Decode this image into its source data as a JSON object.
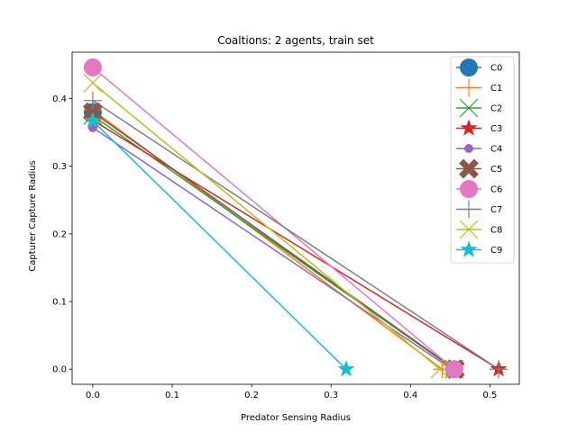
{
  "chart_data": {
    "type": "line",
    "title": "Coaltions: 2 agents, train set",
    "xlabel": "Predator Sensing Radius",
    "ylabel": "Capturer Capture Radius",
    "xlim": [
      -0.026,
      0.537
    ],
    "ylim": [
      -0.0223,
      0.4685
    ],
    "xticks": [
      0.0,
      0.1,
      0.2,
      0.3,
      0.4,
      0.5
    ],
    "xtick_labels": [
      "0.0",
      "0.1",
      "0.2",
      "0.3",
      "0.4",
      "0.5"
    ],
    "yticks": [
      0.0,
      0.1,
      0.2,
      0.3,
      0.4
    ],
    "ytick_labels": [
      "0.0",
      "0.1",
      "0.2",
      "0.3",
      "0.4"
    ],
    "grid": false,
    "legend_position": "upper right",
    "series": [
      {
        "name": "C0",
        "color": "#1f77b4",
        "marker": "circle-large",
        "x": [
          0.0,
          0.455
        ],
        "y": [
          0.38,
          0.0
        ]
      },
      {
        "name": "C1",
        "color": "#ff7f0e",
        "marker": "plus",
        "x": [
          0.0,
          0.44
        ],
        "y": [
          0.383,
          0.0
        ]
      },
      {
        "name": "C2",
        "color": "#2ca02c",
        "marker": "x",
        "x": [
          0.0,
          0.455
        ],
        "y": [
          0.375,
          0.0
        ]
      },
      {
        "name": "C3",
        "color": "#d62728",
        "marker": "star",
        "x": [
          0.0,
          0.511
        ],
        "y": [
          0.368,
          0.0
        ]
      },
      {
        "name": "C4",
        "color": "#9467bd",
        "marker": "circle-small",
        "x": [
          0.0,
          0.452
        ],
        "y": [
          0.357,
          0.0
        ]
      },
      {
        "name": "C5",
        "color": "#8c564b",
        "marker": "x-filled",
        "x": [
          0.0,
          0.456
        ],
        "y": [
          0.38,
          0.0
        ]
      },
      {
        "name": "C6",
        "color": "#e377c2",
        "marker": "circle-large",
        "x": [
          0.0,
          0.455
        ],
        "y": [
          0.446,
          0.0
        ]
      },
      {
        "name": "C7",
        "color": "#7f7f7f",
        "marker": "plus",
        "x": [
          0.0,
          0.511
        ],
        "y": [
          0.397,
          0.0
        ]
      },
      {
        "name": "C8",
        "color": "#bcbd22",
        "marker": "x",
        "x": [
          0.0,
          0.437
        ],
        "y": [
          0.423,
          0.0
        ]
      },
      {
        "name": "C9",
        "color": "#17becf",
        "marker": "star",
        "x": [
          0.0,
          0.319
        ],
        "y": [
          0.367,
          0.0
        ]
      }
    ]
  }
}
